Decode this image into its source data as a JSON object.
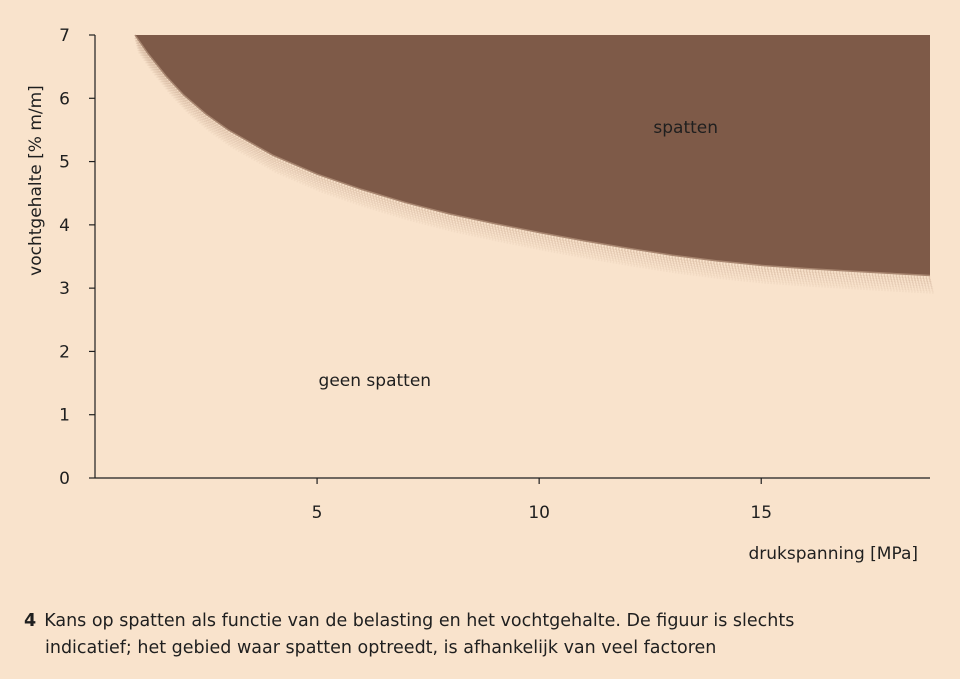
{
  "chart_data": {
    "type": "area",
    "title": "",
    "xlabel": "drukspanning [MPa]",
    "ylabel": "vochtgehalte [% m/m]",
    "xlim": [
      0,
      18.8
    ],
    "ylim": [
      0,
      7
    ],
    "x_ticks": [
      5,
      10,
      15
    ],
    "y_ticks": [
      0,
      1,
      2,
      3,
      4,
      5,
      6,
      7
    ],
    "grid": false,
    "colors": {
      "background": "#f9e3cc",
      "region_fill": "#7e5a48",
      "boundary_blur": "#c9a990",
      "axis": "#1f1f1f"
    },
    "series": [
      {
        "name": "spatten",
        "x": [
          0.9,
          1.2,
          1.6,
          2.0,
          2.5,
          3.0,
          3.5,
          4.0,
          5.0,
          6.0,
          7.0,
          8.0,
          9.0,
          10.0,
          11.0,
          12.0,
          13.0,
          14.0,
          15.0,
          16.0,
          17.0,
          18.0,
          18.8
        ],
        "y": [
          7.0,
          6.7,
          6.35,
          6.05,
          5.75,
          5.5,
          5.3,
          5.1,
          4.8,
          4.56,
          4.35,
          4.17,
          4.02,
          3.88,
          3.75,
          3.63,
          3.52,
          3.43,
          3.36,
          3.31,
          3.27,
          3.23,
          3.2
        ]
      }
    ],
    "annotations": [
      {
        "text": "spatten",
        "x": 13.3,
        "y": 5.45
      },
      {
        "text": "geen spatten",
        "x": 6.3,
        "y": 1.45
      }
    ]
  },
  "caption": {
    "number": "4",
    "line1": "Kans op spatten als functie van de belasting en het vochtgehalte. De figuur is slechts",
    "line2": "indicatief; het gebied waar spatten optreedt, is afhankelijk van veel factoren"
  }
}
